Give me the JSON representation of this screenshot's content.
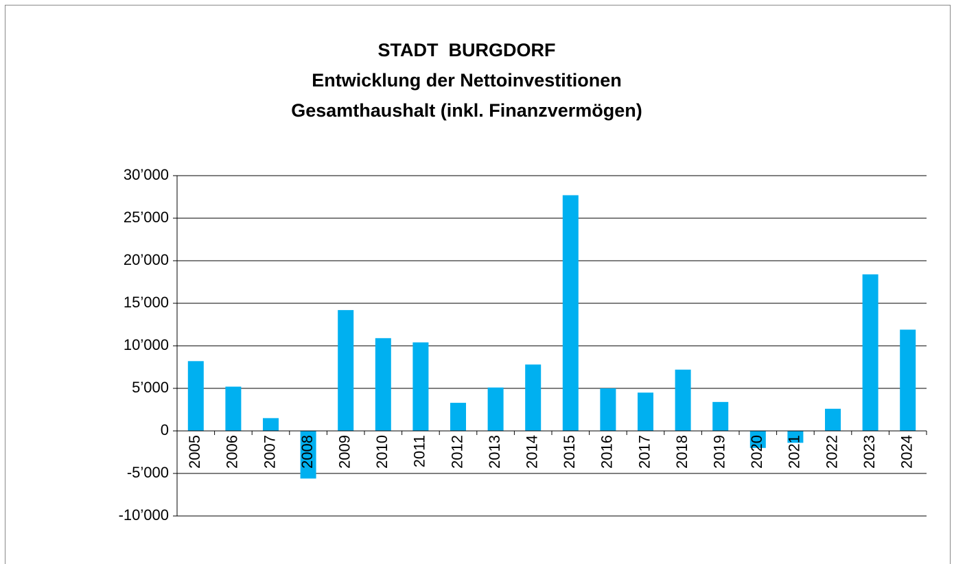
{
  "chart_data": {
    "type": "bar",
    "title": [
      "STADT  BURGDORF",
      "Entwicklung der Nettoinvestitionen",
      "Gesamthaushalt (inkl. Finanzvermögen)"
    ],
    "categories": [
      "2005",
      "2006",
      "2007",
      "2008",
      "2009",
      "2010",
      "2011",
      "2012",
      "2013",
      "2014",
      "2015",
      "2016",
      "2017",
      "2018",
      "2019",
      "2020",
      "2021",
      "2022",
      "2023",
      "2024"
    ],
    "values": [
      8200,
      5200,
      1500,
      -5600,
      14200,
      10900,
      10400,
      3300,
      5100,
      7800,
      27700,
      5000,
      4500,
      7200,
      3400,
      -2000,
      -1400,
      2600,
      18400,
      11900
    ],
    "color": "#00b0f0",
    "ylim": [
      -10000,
      30000
    ],
    "yticks": [
      {
        "value": -10000,
        "label": "-10’000"
      },
      {
        "value": -5000,
        "label": "-5’000"
      },
      0,
      {
        "value": 5000,
        "label": "5’000"
      },
      {
        "value": 10000,
        "label": "10’000"
      },
      {
        "value": 15000,
        "label": "15’000"
      },
      {
        "value": 20000,
        "label": "20’000"
      },
      {
        "value": 25000,
        "label": "25’000"
      },
      {
        "value": 30000,
        "label": "30’000"
      }
    ],
    "grid": true
  }
}
